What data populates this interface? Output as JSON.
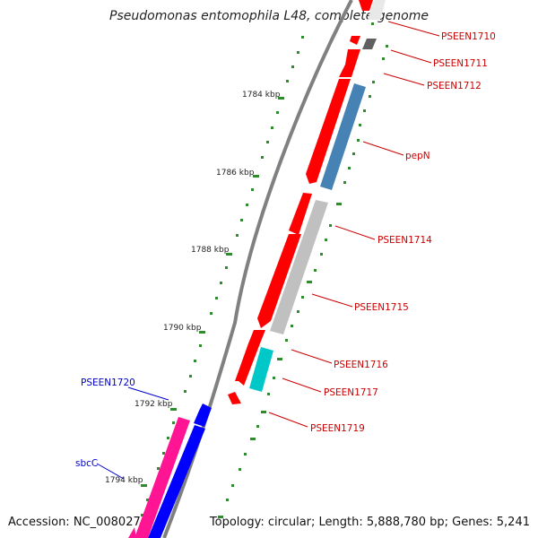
{
  "title": "Pseudomonas entomophila L48, complete genome",
  "footer": {
    "accession": "Accession: NC_008027",
    "topology": "Topology: circular; Length: 5,888,780 bp; Genes: 5,241"
  },
  "kbp_ticks": [
    "1784 kbp",
    "1786 kbp",
    "1788 kbp",
    "1790 kbp",
    "1792 kbp",
    "1794 kbp"
  ],
  "genes_right": [
    "PSEEN1710",
    "PSEEN1711",
    "PSEEN1712",
    "pepN",
    "PSEEN1714",
    "PSEEN1715",
    "PSEEN1716",
    "PSEEN1717",
    "PSEEN1719"
  ],
  "genes_left": [
    "PSEEN1720",
    "sbcC"
  ],
  "colors": {
    "cds_forward": "#ff0000",
    "cds_reverse": "#0000ff",
    "pepN": "#4682b4",
    "cog_grey": "#c0c0c0",
    "cog_dark": "#606060",
    "cog_cyan": "#00c8c8",
    "cog_magenta": "#ff1493",
    "label_right": "#cc0000",
    "label_left": "#0000cc",
    "tick_green": "#2e8b2e"
  }
}
